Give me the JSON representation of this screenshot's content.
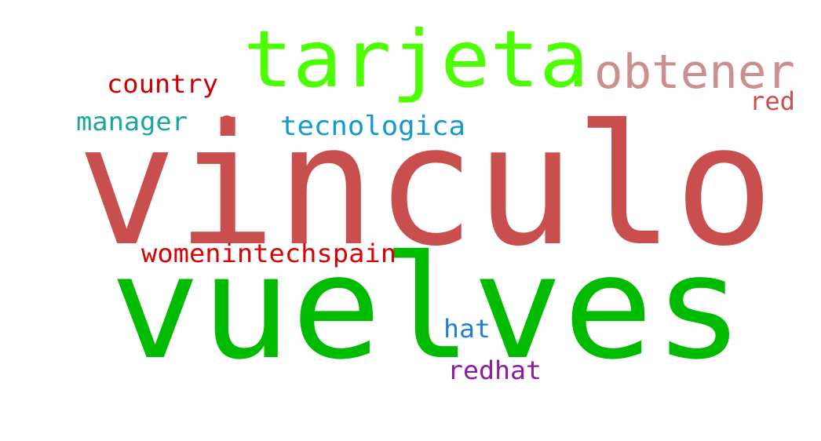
{
  "words": {
    "vinculo": {
      "text": "vinculo",
      "color": "#c94f4f"
    },
    "vuelves": {
      "text": "vuelves",
      "color": "#00bb00"
    },
    "tarjeta": {
      "text": "tarjeta",
      "color": "#4cff00"
    },
    "obtener": {
      "text": "obtener",
      "color": "#cc8f8f"
    },
    "country": {
      "text": "country",
      "color": "#cc0000"
    },
    "red": {
      "text": "red",
      "color": "#cc4f4f"
    },
    "manager": {
      "text": "manager",
      "color": "#18a89a"
    },
    "tecnologica": {
      "text": "tecnologica",
      "color": "#1598cc"
    },
    "womenintechspain": {
      "text": "womenintechspain",
      "color": "#dd0000"
    },
    "hat": {
      "text": "hat",
      "color": "#1e7fd4"
    },
    "redhat": {
      "text": "redhat",
      "color": "#8b1aa0"
    },
    "bullet": {
      "text": "•",
      "color": "#c94f4f"
    }
  }
}
